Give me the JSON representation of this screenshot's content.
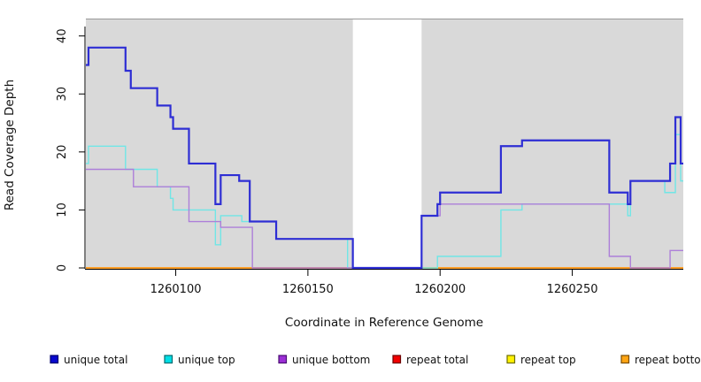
{
  "chart_data": {
    "type": "line",
    "subtype": "step-coverage-plot",
    "title": "",
    "xlabel": "Coordinate in Reference Genome",
    "ylabel": "Read Coverage Depth",
    "xlim": [
      1260066,
      1260292
    ],
    "ylim": [
      0,
      43
    ],
    "x_ticks": [
      "1260100",
      "1260150",
      "1260200",
      "1260250"
    ],
    "x_tick_values": [
      1260100,
      1260150,
      1260200,
      1260250
    ],
    "y_ticks": [
      "0",
      "10",
      "20",
      "30",
      "40"
    ],
    "y_tick_values": [
      0,
      10,
      20,
      30,
      40
    ],
    "grid": false,
    "plot_bg": "#d9d9d9",
    "top_border_color": "#999999",
    "axis_color": "#000000",
    "masked_region": {
      "start": 1260167,
      "end": 1260193,
      "fill": "#ffffff"
    },
    "legend_position": "bottom",
    "series": [
      {
        "name": "unique total",
        "color": "#2e2ed4",
        "legend_fill": "#0909cf",
        "legend_border": "#00006e",
        "width": 2.2,
        "z": 6,
        "steps": [
          [
            1260066,
            35
          ],
          [
            1260067,
            38
          ],
          [
            1260081,
            34
          ],
          [
            1260083,
            31
          ],
          [
            1260093,
            28
          ],
          [
            1260098,
            26
          ],
          [
            1260099,
            24
          ],
          [
            1260105,
            18
          ],
          [
            1260115,
            11
          ],
          [
            1260117,
            16
          ],
          [
            1260124,
            15
          ],
          [
            1260128,
            8
          ],
          [
            1260138,
            5
          ],
          [
            1260167,
            0
          ],
          [
            1260193,
            9
          ],
          [
            1260199,
            11
          ],
          [
            1260200,
            13
          ],
          [
            1260223,
            21
          ],
          [
            1260231,
            22
          ],
          [
            1260264,
            13
          ],
          [
            1260271,
            11
          ],
          [
            1260272,
            15
          ],
          [
            1260287,
            18
          ],
          [
            1260289,
            26
          ],
          [
            1260291,
            18
          ]
        ],
        "x_end": 1260292
      },
      {
        "name": "unique top",
        "color": "#70e6e6",
        "legend_fill": "#00dfe6",
        "legend_border": "#006b70",
        "width": 1.4,
        "z": 4,
        "steps": [
          [
            1260066,
            18
          ],
          [
            1260067,
            21
          ],
          [
            1260081,
            17
          ],
          [
            1260093,
            14
          ],
          [
            1260098,
            12
          ],
          [
            1260099,
            10
          ],
          [
            1260115,
            4
          ],
          [
            1260117,
            9
          ],
          [
            1260125,
            8
          ],
          [
            1260138,
            5
          ],
          [
            1260165,
            0
          ],
          [
            1260199,
            2
          ],
          [
            1260223,
            10
          ],
          [
            1260231,
            11
          ],
          [
            1260271,
            9
          ],
          [
            1260272,
            15
          ],
          [
            1260285,
            13
          ],
          [
            1260289,
            23
          ],
          [
            1260291,
            15
          ]
        ],
        "x_end": 1260292
      },
      {
        "name": "unique bottom",
        "color": "#ad7fd9",
        "legend_fill": "#9c2fd6",
        "legend_border": "#4a0d73",
        "width": 1.4,
        "z": 5,
        "steps": [
          [
            1260066,
            17
          ],
          [
            1260084,
            14
          ],
          [
            1260105,
            8
          ],
          [
            1260117,
            7
          ],
          [
            1260129,
            0
          ],
          [
            1260193,
            9
          ],
          [
            1260200,
            11
          ],
          [
            1260264,
            2
          ],
          [
            1260272,
            0
          ],
          [
            1260287,
            3
          ]
        ],
        "x_end": 1260292
      },
      {
        "name": "repeat total",
        "color": "#e00000",
        "legend_fill": "#f20000",
        "legend_border": "#6e0000",
        "width": 1.4,
        "z": 1,
        "steps": [
          [
            1260066,
            0
          ]
        ],
        "x_end": 1260292
      },
      {
        "name": "repeat top",
        "color": "#ffee00",
        "legend_fill": "#fff200",
        "legend_border": "#6e6e00",
        "width": 1.4,
        "z": 2,
        "steps": [
          [
            1260066,
            0
          ]
        ],
        "x_end": 1260292
      },
      {
        "name": "repeat bottom",
        "color": "#ff9d26",
        "legend_fill": "#ffa513",
        "legend_border": "#7a4d00",
        "width": 1.7,
        "z": 3,
        "steps": [
          [
            1260066,
            0
          ]
        ],
        "x_end": 1260292
      }
    ]
  }
}
